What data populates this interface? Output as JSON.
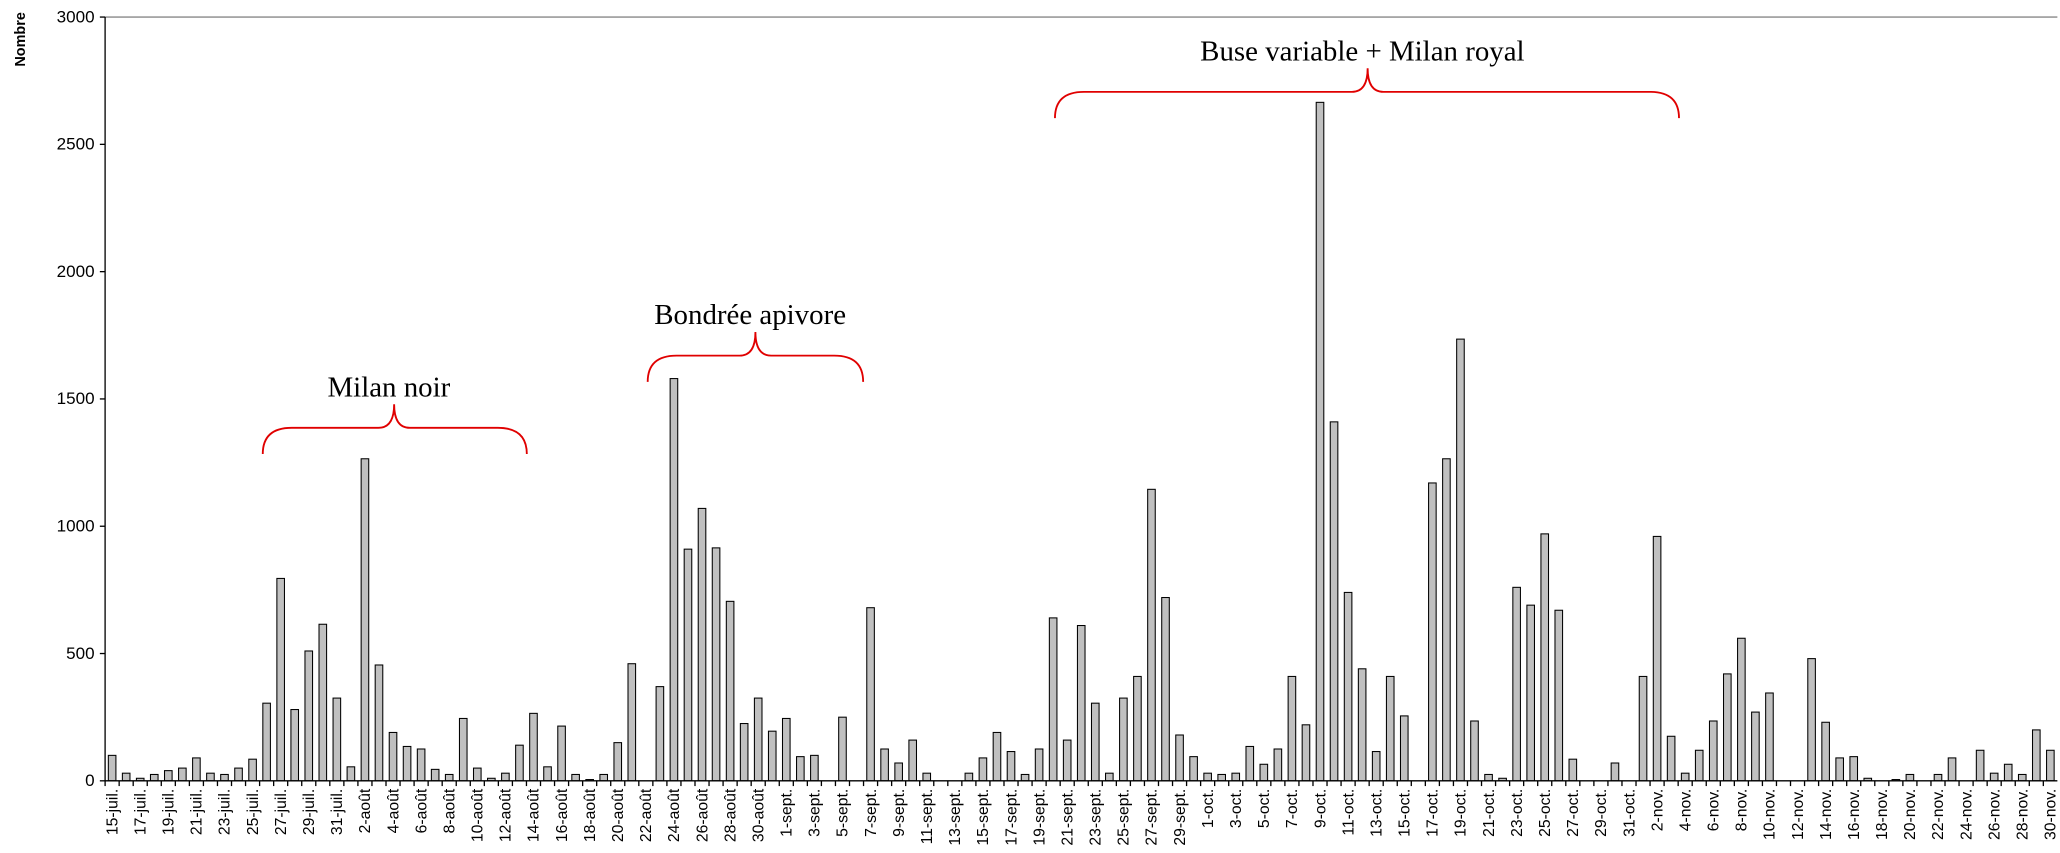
{
  "chart_data": {
    "type": "bar",
    "y_label": "Nombre",
    "categories": [
      "15-juil.",
      null,
      "17-juil.",
      null,
      "19-juil.",
      null,
      "21-juil.",
      null,
      "23-juil.",
      null,
      "25-juil.",
      null,
      "27-juil.",
      null,
      "29-juil.",
      null,
      "31-juil.",
      null,
      "2-août",
      null,
      "4-août",
      null,
      "6-août",
      null,
      "8-août",
      null,
      "10-août",
      null,
      "12-août",
      null,
      "14-août",
      null,
      "16-août",
      null,
      "18-août",
      null,
      "20-août",
      null,
      "22-août",
      null,
      "24-août",
      null,
      "26-août",
      null,
      "28-août",
      null,
      "30-août",
      null,
      "1-sept.",
      null,
      "3-sept.",
      null,
      "5-sept.",
      null,
      "7-sept.",
      null,
      "9-sept.",
      null,
      "11-sept.",
      null,
      "13-sept.",
      null,
      "15-sept.",
      null,
      "17-sept.",
      null,
      "19-sept.",
      null,
      "21-sept.",
      null,
      "23-sept.",
      null,
      "25-sept.",
      null,
      "27-sept.",
      null,
      "29-sept.",
      null,
      "1-oct.",
      null,
      "3-oct.",
      null,
      "5-oct.",
      null,
      "7-oct.",
      null,
      "9-oct.",
      null,
      "11-oct.",
      null,
      "13-oct.",
      null,
      "15-oct.",
      null,
      "17-oct.",
      null,
      "19-oct.",
      null,
      "21-oct.",
      null,
      "23-oct.",
      null,
      "25-oct.",
      null,
      "27-oct.",
      null,
      "29-oct.",
      null,
      "31-oct.",
      null,
      "2-nov.",
      null,
      "4-nov.",
      null,
      "6-nov.",
      null,
      "8-nov.",
      null,
      "10-nov.",
      null,
      "12-nov.",
      null,
      "14-nov.",
      null,
      "16-nov.",
      null,
      "18-nov.",
      null,
      "20-nov.",
      null,
      "22-nov.",
      null,
      "24-nov.",
      null,
      "26-nov.",
      null,
      "28-nov.",
      null,
      "30-nov."
    ],
    "values": [
      100,
      30,
      10,
      25,
      40,
      50,
      90,
      30,
      25,
      50,
      85,
      305,
      795,
      280,
      510,
      615,
      325,
      55,
      1265,
      455,
      190,
      135,
      125,
      45,
      25,
      245,
      50,
      10,
      30,
      140,
      265,
      55,
      215,
      25,
      5,
      25,
      150,
      460,
      0,
      370,
      1580,
      910,
      1070,
      915,
      705,
      225,
      325,
      195,
      245,
      95,
      100,
      0,
      250,
      0,
      680,
      125,
      70,
      160,
      30,
      0,
      0,
      30,
      90,
      190,
      115,
      25,
      125,
      640,
      160,
      610,
      305,
      30,
      325,
      410,
      1145,
      720,
      180,
      95,
      30,
      25,
      30,
      135,
      65,
      125,
      410,
      220,
      2665,
      1410,
      740,
      440,
      115,
      410,
      255,
      0,
      1170,
      1265,
      1735,
      235,
      25,
      10,
      760,
      690,
      970,
      670,
      85,
      0,
      0,
      70,
      0,
      410,
      960,
      175,
      30,
      120,
      235,
      420,
      560,
      270,
      345,
      0,
      0,
      480,
      230,
      90,
      95,
      10,
      0,
      5,
      25,
      0,
      25,
      90,
      0,
      120,
      30,
      65,
      25,
      200,
      120
    ],
    "color": "#c0c0c0",
    "ylim": [
      0,
      3000
    ],
    "yticks": [
      0,
      500,
      1000,
      1500,
      2000,
      2500,
      3000
    ],
    "annotations": [
      "Milan noir",
      "Bondrée apivore",
      "Buse variable + Milan royal"
    ],
    "annotation_color": "#e00000"
  }
}
